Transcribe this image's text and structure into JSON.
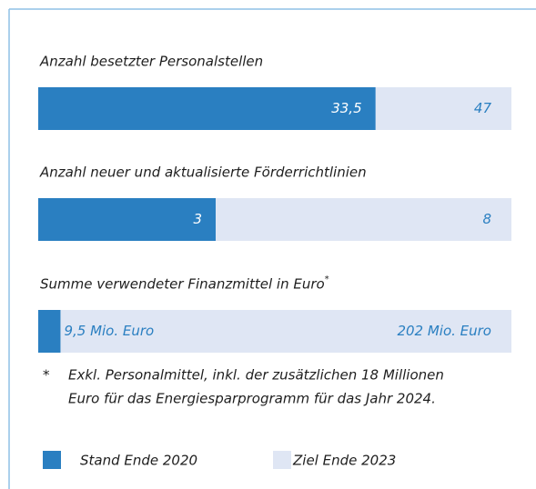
{
  "chart_data": [
    {
      "type": "progress",
      "title": "Anzahl besetzter Personalstellen",
      "values": [
        33.5,
        47
      ],
      "value_labels": [
        "33,5",
        "47"
      ],
      "xlim": [
        0,
        47
      ]
    },
    {
      "type": "progress",
      "title": "Anzahl neuer und aktualisierte Förderrichtlinien",
      "values": [
        3,
        8
      ],
      "value_labels": [
        "3",
        "8"
      ],
      "xlim": [
        0,
        8
      ]
    },
    {
      "type": "progress",
      "title": "Summe verwendeter Finanzmittel in Euro",
      "title_marker": "*",
      "values": [
        9.5,
        202
      ],
      "value_labels": [
        "9,5 Mio. Euro",
        "202 Mio. Euro"
      ],
      "xlim": [
        0,
        202
      ]
    }
  ],
  "colors": [
    "#2a7fc1",
    "#dfe6f4"
  ],
  "legend": [
    "Stand Ende 2020",
    "Ziel Ende 2023"
  ],
  "footnote": {
    "marker": "*",
    "lines": [
      "Exkl. Personalmittel, inkl. der zusätzlichen 18 Millionen",
      "Euro für das Energiesparprogramm für das Jahr 2024."
    ]
  }
}
